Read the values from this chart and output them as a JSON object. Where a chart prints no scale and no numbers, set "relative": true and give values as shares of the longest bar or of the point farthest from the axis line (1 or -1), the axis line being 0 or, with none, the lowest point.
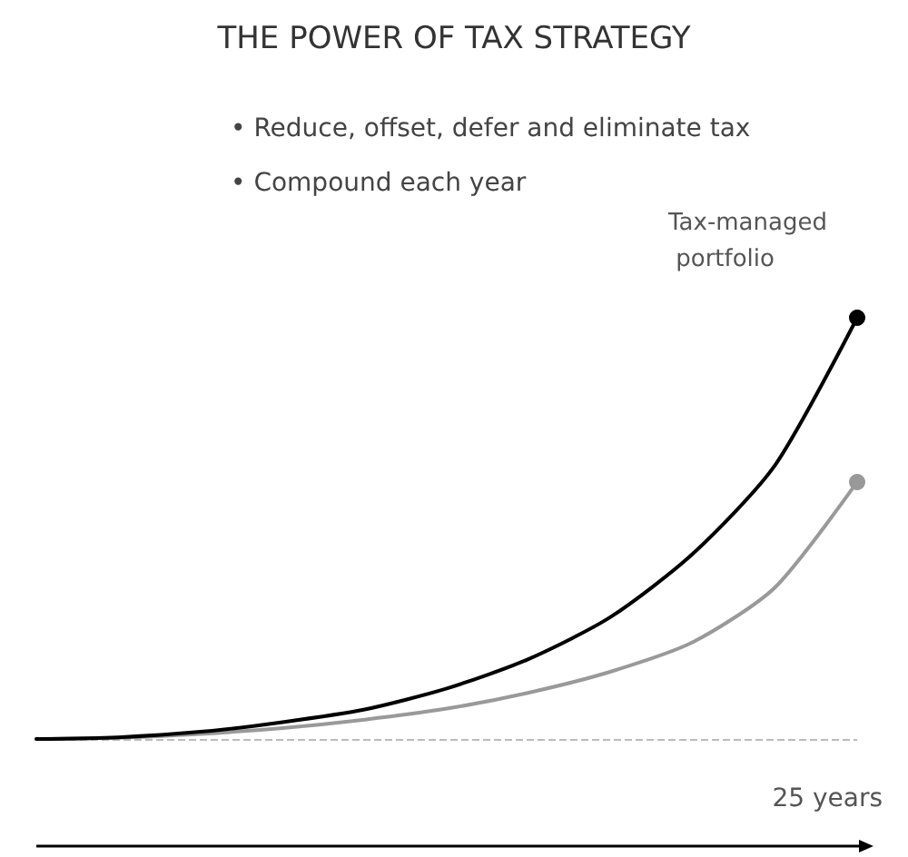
{
  "chart_data": {
    "type": "line",
    "title": "THE POWER OF TAX STRATEGY",
    "annotations": [
      "• Reduce, offset, defer and eliminate tax",
      "• Compound each year"
    ],
    "xlabel": "25 years",
    "relative": true,
    "categories": [
      null,
      null,
      null,
      null,
      null,
      null,
      null,
      null,
      null,
      null,
      null
    ],
    "series": [
      {
        "name": "Tax-managed portfolio",
        "color": "#000000",
        "values": [
          0,
          0.004,
          0.017,
          0.04,
          0.07,
          0.12,
          0.19,
          0.29,
          0.44,
          0.65,
          1
        ]
      },
      {
        "color": "#999999",
        "values": [
          0,
          0.003,
          0.012,
          0.026,
          0.046,
          0.072,
          0.11,
          0.16,
          0.23,
          0.36,
          0.61
        ]
      }
    ],
    "ref_lines": [
      {
        "axis": "y",
        "value": 0,
        "color": "#bbbbbb",
        "line_style": "dashed"
      }
    ],
    "grid": false,
    "legend": false,
    "line_style": "solid"
  }
}
